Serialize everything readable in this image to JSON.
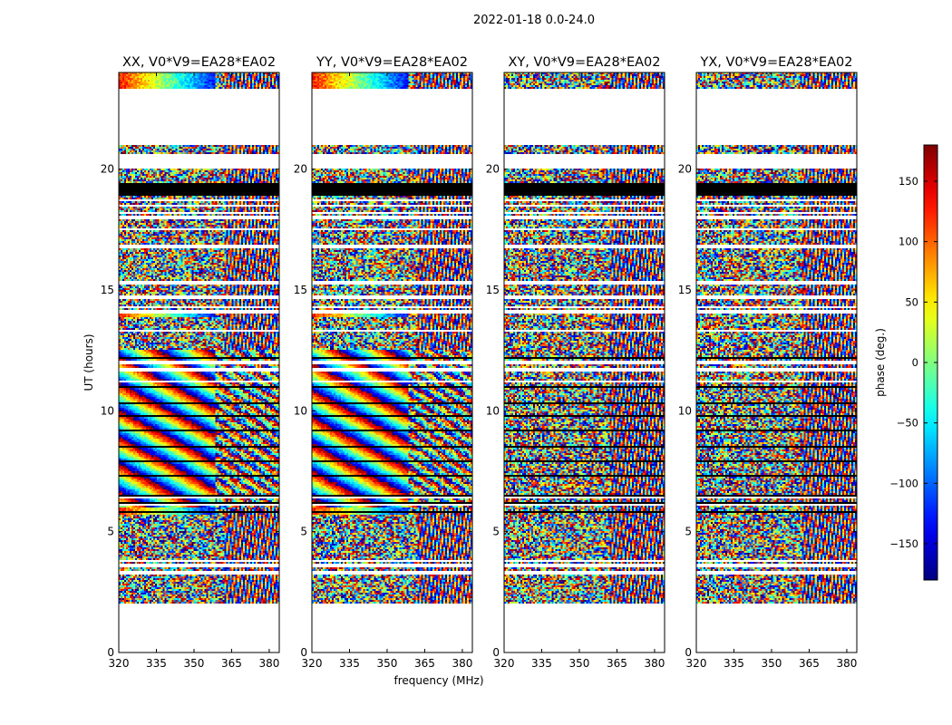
{
  "chart_data": {
    "type": "heatmap",
    "title": "2022-01-18 0.0-24.0",
    "xlabel": "frequency (MHz)",
    "ylabel": "UT (hours)",
    "xlim": [
      320,
      384
    ],
    "ylim": [
      0,
      24
    ],
    "x_ticks": [
      "320",
      "335",
      "350",
      "365",
      "380"
    ],
    "x_tick_values": [
      320,
      335,
      350,
      365,
      380
    ],
    "y_ticks": [
      "0",
      "5",
      "10",
      "15",
      "20"
    ],
    "y_tick_values": [
      0,
      5,
      10,
      15,
      20
    ],
    "colorbar": {
      "label": "phase (deg.)",
      "range": [
        -180,
        180
      ],
      "ticks": [
        "150",
        "100",
        "50",
        "0",
        "−50",
        "−100",
        "−150"
      ],
      "tick_values": [
        150,
        100,
        50,
        0,
        -50,
        -100,
        -150
      ],
      "colormap": "jet"
    },
    "panels": [
      {
        "title": "XX, V0*V9=EA28*EA02",
        "pol": "XX",
        "coherent": true
      },
      {
        "title": "YY, V0*V9=EA28*EA02",
        "pol": "YY",
        "coherent": true
      },
      {
        "title": "XY, V0*V9=EA28*EA02",
        "pol": "XY",
        "coherent": false
      },
      {
        "title": "YX, V0*V9=EA28*EA02",
        "pol": "YX",
        "coherent": false
      }
    ],
    "data_gaps_ut": [
      [
        0,
        2.0
      ],
      [
        21.0,
        23.3
      ],
      [
        20.05,
        20.6
      ]
    ],
    "flagged_black_ut": [
      [
        18.9,
        19.4
      ]
    ],
    "blank_line_ut": [
      3.3,
      3.6,
      3.8,
      6.1,
      6.4,
      11.2,
      11.7,
      12.0,
      13.3,
      14.1,
      14.3,
      14.7,
      15.3,
      16.8,
      17.5,
      18.0,
      18.2,
      18.5,
      18.7
    ],
    "black_line_ut": [
      5.8,
      6.2,
      6.5,
      7.3,
      7.9,
      8.5,
      9.2,
      9.8,
      10.3,
      11.0,
      11.4,
      12.2,
      16.5
    ]
  }
}
